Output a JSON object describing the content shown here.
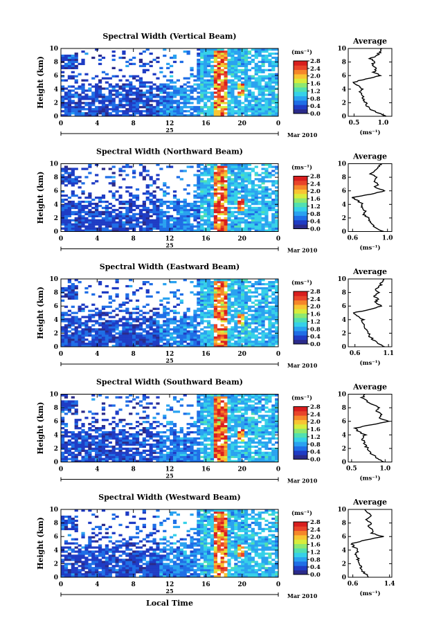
{
  "figure": {
    "xlabel": "Local Time",
    "date_label": "25",
    "month_label": "Mar 2010",
    "colorbar_unit": "(ms⁻¹)",
    "avg_title": "Average",
    "avg_xlabel": "(ms⁻¹)",
    "colormap": [
      "#2b2b8a",
      "#1f3cc4",
      "#1f6ee6",
      "#2aa2f0",
      "#36d1e8",
      "#52e0b0",
      "#8ee870",
      "#d8ec3c",
      "#f8c432",
      "#f5862a",
      "#e8442a",
      "#d81e1e"
    ]
  },
  "chart_data": [
    {
      "type": "heatmap",
      "title": "Spectral Width (Vertical Beam)",
      "ylabel": "Height (km)",
      "xlim": [
        0,
        24
      ],
      "ylim": [
        0,
        10
      ],
      "xticks": [
        "0",
        "4",
        "8",
        "12",
        "16",
        "20",
        "0"
      ],
      "yticks": [
        "0",
        "2",
        "4",
        "6",
        "8",
        "10"
      ],
      "colorbar": {
        "range": [
          0,
          2.8
        ],
        "ticks": [
          "0.0",
          "0.4",
          "0.8",
          "1.2",
          "1.6",
          "2.0",
          "2.4",
          "2.8"
        ]
      },
      "profile": {
        "title": "Average",
        "xlim": [
          0.4,
          1.15
        ],
        "xticks": [
          "0.5",
          "1.0"
        ],
        "ylim": [
          0,
          10
        ],
        "heights": [
          0,
          0.5,
          1,
          1.5,
          2,
          2.5,
          3,
          3.5,
          4,
          4.5,
          5,
          5.5,
          6,
          6.5,
          7,
          7.5,
          8,
          8.5,
          9,
          9.5,
          10
        ],
        "values": [
          1.05,
          0.93,
          0.78,
          0.72,
          0.7,
          0.66,
          0.65,
          0.6,
          0.64,
          0.56,
          0.48,
          0.7,
          0.95,
          0.84,
          0.88,
          0.8,
          0.86,
          0.78,
          0.9,
          0.95,
          0.98
        ]
      }
    },
    {
      "type": "heatmap",
      "title": "Spectral Width (Northward Beam)",
      "ylabel": "Height (km)",
      "xlim": [
        0,
        24
      ],
      "ylim": [
        0,
        10
      ],
      "xticks": [
        "0",
        "4",
        "8",
        "12",
        "16",
        "20",
        "0"
      ],
      "yticks": [
        "0",
        "2",
        "4",
        "6",
        "8",
        "10"
      ],
      "colorbar": {
        "range": [
          0,
          2.8
        ],
        "ticks": [
          "0.0",
          "0.4",
          "0.8",
          "1.2",
          "1.6",
          "2.0",
          "2.4",
          "2.8"
        ]
      },
      "profile": {
        "title": "Average",
        "xlim": [
          0.55,
          1.05
        ],
        "xticks": [
          "0.6",
          "1.0"
        ],
        "ylim": [
          0,
          10
        ],
        "heights": [
          0,
          0.5,
          1,
          1.5,
          2,
          2.5,
          3,
          3.5,
          4,
          4.5,
          5,
          5.5,
          6,
          6.5,
          7,
          7.5,
          8,
          8.5,
          9,
          9.5,
          10
        ],
        "values": [
          0.95,
          0.88,
          0.82,
          0.8,
          0.78,
          0.72,
          0.74,
          0.7,
          0.72,
          0.66,
          0.6,
          0.8,
          0.98,
          0.85,
          0.9,
          0.84,
          0.88,
          0.8,
          0.86,
          0.9,
          0.92
        ]
      }
    },
    {
      "type": "heatmap",
      "title": "Spectral Width (Eastward Beam)",
      "ylabel": "Height (km)",
      "xlim": [
        0,
        24
      ],
      "ylim": [
        0,
        10
      ],
      "xticks": [
        "0",
        "4",
        "8",
        "12",
        "16",
        "20",
        "0"
      ],
      "yticks": [
        "0",
        "2",
        "4",
        "6",
        "8",
        "10"
      ],
      "colorbar": {
        "range": [
          0,
          2.8
        ],
        "ticks": [
          "0.0",
          "0.4",
          "0.8",
          "1.2",
          "1.6",
          "2.0",
          "2.4",
          "2.8"
        ]
      },
      "profile": {
        "title": "Average",
        "xlim": [
          0.5,
          1.15
        ],
        "xticks": [
          "0.6",
          "1.1"
        ],
        "ylim": [
          0,
          10
        ],
        "heights": [
          0,
          0.5,
          1,
          1.5,
          2,
          2.5,
          3,
          3.5,
          4,
          4.5,
          5,
          5.5,
          6,
          6.5,
          7,
          7.5,
          8,
          8.5,
          9,
          9.5,
          10
        ],
        "values": [
          1.05,
          0.95,
          0.88,
          0.82,
          0.8,
          0.76,
          0.74,
          0.7,
          0.72,
          0.65,
          0.58,
          0.82,
          1.0,
          0.9,
          0.94,
          0.88,
          0.96,
          0.9,
          0.98,
          1.0,
          1.02
        ]
      }
    },
    {
      "type": "heatmap",
      "title": "Spectral Width (Southward Beam)",
      "ylabel": "Height (km)",
      "xlim": [
        0,
        24
      ],
      "ylim": [
        0,
        10
      ],
      "xticks": [
        "0",
        "4",
        "8",
        "12",
        "16",
        "20",
        "0"
      ],
      "yticks": [
        "0",
        "2",
        "4",
        "6",
        "8",
        "10"
      ],
      "colorbar": {
        "range": [
          0,
          2.8
        ],
        "ticks": [
          "0.0",
          "0.4",
          "0.8",
          "1.2",
          "1.6",
          "2.0",
          "2.4",
          "2.8"
        ]
      },
      "profile": {
        "title": "Average",
        "xlim": [
          0.45,
          1.1
        ],
        "xticks": [
          "0.5",
          "1.0"
        ],
        "ylim": [
          0,
          10
        ],
        "heights": [
          0,
          0.5,
          1,
          1.5,
          2,
          2.5,
          3,
          3.5,
          4,
          4.5,
          5,
          5.5,
          6,
          6.5,
          7,
          7.5,
          8,
          8.5,
          9,
          9.5,
          10
        ],
        "values": [
          0.98,
          0.9,
          0.82,
          0.76,
          0.74,
          0.7,
          0.68,
          0.66,
          0.7,
          0.6,
          0.55,
          0.8,
          1.05,
          0.9,
          0.96,
          0.86,
          0.92,
          0.8,
          0.72,
          0.66,
          0.7
        ]
      }
    },
    {
      "type": "heatmap",
      "title": "Spectral Width (Westward Beam)",
      "ylabel": "Height (km)",
      "xlim": [
        0,
        24
      ],
      "ylim": [
        0,
        10
      ],
      "xticks": [
        "0",
        "4",
        "8",
        "12",
        "16",
        "20",
        "0"
      ],
      "yticks": [
        "0",
        "2",
        "4",
        "6",
        "8",
        "10"
      ],
      "colorbar": {
        "range": [
          0,
          2.8
        ],
        "ticks": [
          "0.0",
          "0.4",
          "0.8",
          "1.2",
          "1.6",
          "2.0",
          "2.4",
          "2.8"
        ]
      },
      "profile": {
        "title": "Average",
        "xlim": [
          0.5,
          1.45
        ],
        "xticks": [
          "0.6",
          "1.4"
        ],
        "ylim": [
          0,
          10
        ],
        "heights": [
          0,
          0.5,
          1,
          1.5,
          2,
          2.5,
          3,
          3.5,
          4,
          4.5,
          5,
          5.5,
          6,
          6.5,
          7,
          7.5,
          8,
          8.5,
          9,
          9.5,
          10
        ],
        "values": [
          0.95,
          0.88,
          0.8,
          0.78,
          0.74,
          0.72,
          0.7,
          0.66,
          0.72,
          0.62,
          0.58,
          0.9,
          1.25,
          1.0,
          1.05,
          0.94,
          1.0,
          0.9,
          1.02,
          0.92,
          0.86
        ]
      }
    }
  ]
}
